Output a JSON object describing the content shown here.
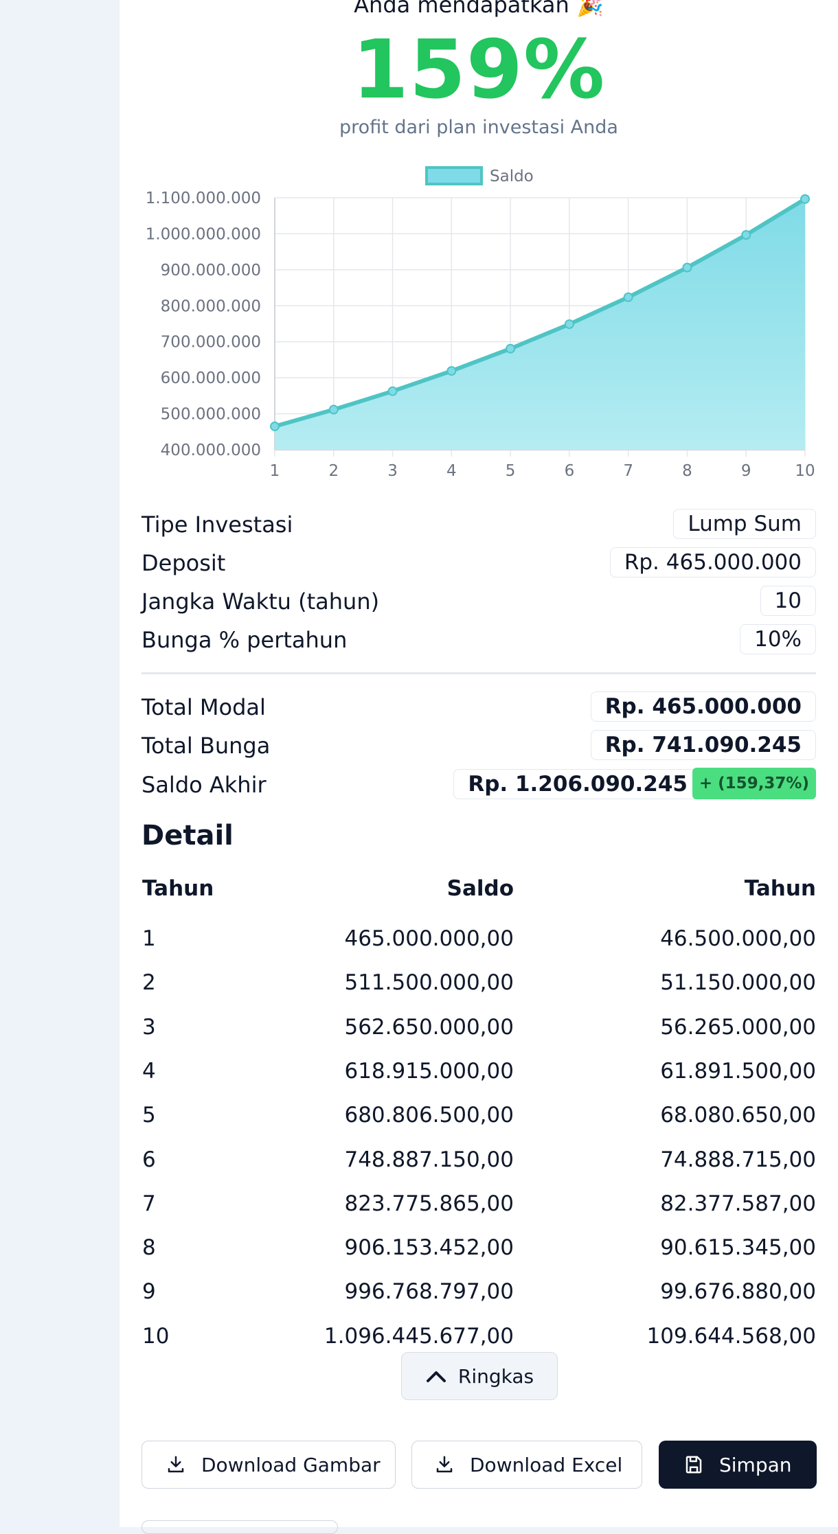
{
  "result": {
    "heading": "Anda mendapatkan 🎉",
    "percent": "159%",
    "subtitle": "profit dari plan investasi Anda"
  },
  "chart_data": {
    "type": "area",
    "legend": "Saldo",
    "x": [
      1,
      2,
      3,
      4,
      5,
      6,
      7,
      8,
      9,
      10
    ],
    "y_ticks": [
      "1.100.000.000",
      "1.000.000.000",
      "900.000.000",
      "800.000.000",
      "700.000.000",
      "600.000.000",
      "500.000.000",
      "400.000.000"
    ],
    "ylim": [
      400000000,
      1100000000
    ],
    "series": [
      {
        "name": "Saldo",
        "values": [
          465000000,
          511500000,
          562650000,
          618915000,
          680806500,
          748887150,
          823775865,
          906153452,
          996768797,
          1096445677
        ]
      }
    ],
    "colors": {
      "line": "#4fc4c4",
      "fill_top": "#7fdbe7",
      "fill_bottom": "#b5ecf2",
      "grid": "#e5e7eb"
    },
    "grid": true,
    "legend_position": "top"
  },
  "summary": {
    "rows": [
      {
        "label": "Tipe Investasi",
        "value": "Lump Sum"
      },
      {
        "label": "Deposit",
        "value": "Rp. 465.000.000"
      },
      {
        "label": "Jangka Waktu (tahun)",
        "value": "10"
      },
      {
        "label": "Bunga % pertahun",
        "value": "10%"
      }
    ],
    "totals": [
      {
        "label": "Total Modal",
        "value": "Rp. 465.000.000"
      },
      {
        "label": "Total Bunga",
        "value": "Rp. 741.090.245"
      },
      {
        "label": "Saldo Akhir",
        "value": "Rp. 1.206.090.245",
        "badge": "+ (159,37%)"
      }
    ]
  },
  "detail": {
    "title": "Detail",
    "headers": [
      "Tahun",
      "Saldo",
      "Tahun"
    ],
    "rows": [
      [
        "1",
        "465.000.000,00",
        "46.500.000,00"
      ],
      [
        "2",
        "511.500.000,00",
        "51.150.000,00"
      ],
      [
        "3",
        "562.650.000,00",
        "56.265.000,00"
      ],
      [
        "4",
        "618.915.000,00",
        "61.891.500,00"
      ],
      [
        "5",
        "680.806.500,00",
        "68.080.650,00"
      ],
      [
        "6",
        "748.887.150,00",
        "74.888.715,00"
      ],
      [
        "7",
        "823.775.865,00",
        "82.377.587,00"
      ],
      [
        "8",
        "906.153.452,00",
        "90.615.345,00"
      ],
      [
        "9",
        "996.768.797,00",
        "99.676.880,00"
      ],
      [
        "10",
        "1.096.445.677,00",
        "109.644.568,00"
      ]
    ],
    "collapse_label": "Ringkas"
  },
  "actions": {
    "download_image": "Download Gambar",
    "download_excel": "Download Excel",
    "save": "Simpan"
  }
}
